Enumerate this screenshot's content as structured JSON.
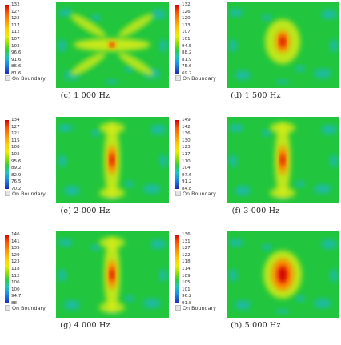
{
  "panels": [
    {
      "id": "c",
      "caption": "(c)  1 000 Hz",
      "pattern": "cross",
      "legend": [
        "132",
        "127",
        "122",
        "117",
        "112",
        "107",
        "102",
        "96.6",
        "91.6",
        "86.6",
        "81.6"
      ]
    },
    {
      "id": "d",
      "caption": "(d)  1 500 Hz",
      "pattern": "center",
      "legend": [
        "132",
        "126",
        "120",
        "113",
        "107",
        "101",
        "94.5",
        "88.2",
        "81.9",
        "75.6",
        "69.2"
      ]
    },
    {
      "id": "e",
      "caption": "(e)  2 000 Hz",
      "pattern": "vertical",
      "legend": [
        "134",
        "127",
        "121",
        "115",
        "108",
        "102",
        "95.6",
        "89.2",
        "82.9",
        "76.5",
        "70.2"
      ]
    },
    {
      "id": "f",
      "caption": "(f)  3 000 Hz",
      "pattern": "vertical",
      "legend": [
        "149",
        "142",
        "136",
        "130",
        "123",
        "117",
        "110",
        "104",
        "97.6",
        "91.2",
        "84.8"
      ]
    },
    {
      "id": "g",
      "caption": "(g)  4 000 Hz",
      "pattern": "vertical",
      "legend": [
        "146",
        "141",
        "135",
        "129",
        "123",
        "118",
        "112",
        "106",
        "100",
        "94.7",
        "88"
      ]
    },
    {
      "id": "h",
      "caption": "(h)  5 000 Hz",
      "pattern": "diamond",
      "legend": [
        "136",
        "131",
        "127",
        "122",
        "118",
        "114",
        "109",
        "105",
        "101",
        "96.2",
        "91.8"
      ]
    }
  ],
  "legend_boundary_label": "On Boundary",
  "colors": {
    "field": "#21c63e",
    "low": "#1ab7c4",
    "mid": "#d9ec18",
    "high": "#ff8a00",
    "peak": "#d40000"
  }
}
